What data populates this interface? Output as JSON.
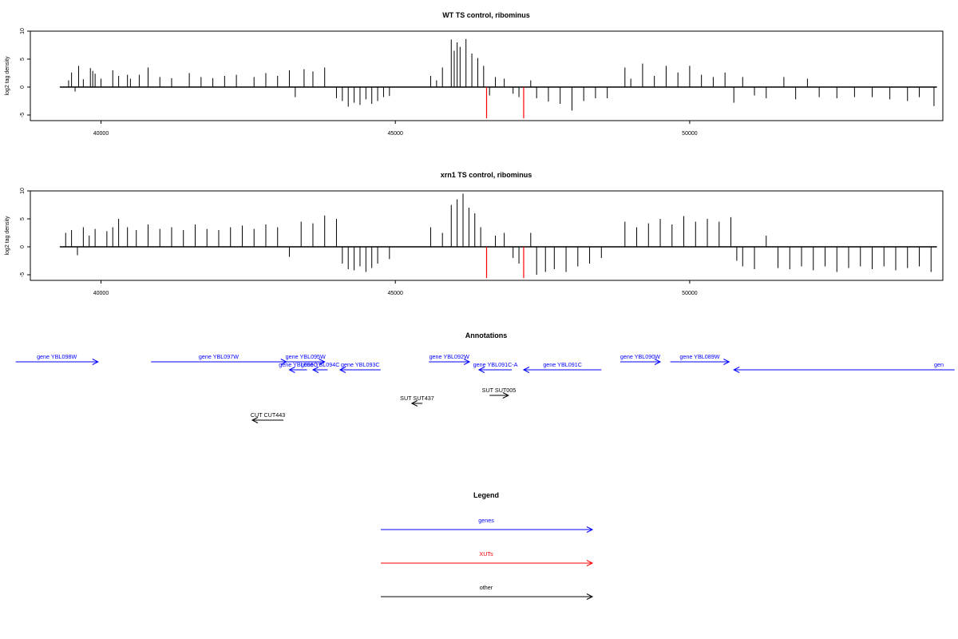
{
  "chart_data": [
    {
      "type": "bar",
      "title": "WT TS control, ribominus",
      "ylabel": "log2 tag density",
      "xlim": [
        38800,
        54300
      ],
      "ylim": [
        -6,
        10
      ],
      "xticks": [
        40000,
        45000,
        50000
      ],
      "yticks": [
        -5,
        0,
        5,
        10
      ],
      "grid": false,
      "series": [
        {
          "color": "#000000",
          "points": [
            [
              39450,
              1.2
            ],
            [
              39500,
              2.6
            ],
            [
              39560,
              -0.8
            ],
            [
              39620,
              3.8
            ],
            [
              39700,
              1.4
            ],
            [
              39820,
              3.4
            ],
            [
              39860,
              2.9
            ],
            [
              39900,
              2.4
            ],
            [
              40000,
              1.5
            ],
            [
              40200,
              3.0
            ],
            [
              40300,
              2.0
            ],
            [
              40450,
              2.2
            ],
            [
              40500,
              1.5
            ],
            [
              40650,
              2.2
            ],
            [
              40800,
              3.5
            ],
            [
              41000,
              1.8
            ],
            [
              41200,
              1.6
            ],
            [
              41500,
              2.5
            ],
            [
              41700,
              1.8
            ],
            [
              41900,
              1.6
            ],
            [
              42100,
              2.0
            ],
            [
              42300,
              2.2
            ],
            [
              42600,
              1.8
            ],
            [
              42800,
              2.5
            ],
            [
              43000,
              2.0
            ],
            [
              43200,
              3.0
            ],
            [
              43300,
              -1.8
            ],
            [
              43450,
              3.2
            ],
            [
              43600,
              2.8
            ],
            [
              43800,
              3.5
            ],
            [
              44000,
              -2.0
            ],
            [
              44100,
              -2.5
            ],
            [
              44200,
              -3.5
            ],
            [
              44300,
              -2.8
            ],
            [
              44400,
              -3.2
            ],
            [
              44500,
              -2.2
            ],
            [
              44600,
              -3.0
            ],
            [
              44700,
              -2.5
            ],
            [
              44800,
              -1.8
            ],
            [
              44900,
              -1.6
            ],
            [
              45600,
              2.0
            ],
            [
              45700,
              1.2
            ],
            [
              45800,
              3.5
            ],
            [
              45950,
              8.5
            ],
            [
              46000,
              6.5
            ],
            [
              46050,
              8.0
            ],
            [
              46100,
              7.2
            ],
            [
              46200,
              8.6
            ],
            [
              46300,
              6.0
            ],
            [
              46400,
              5.2
            ],
            [
              46500,
              3.8
            ],
            [
              46600,
              -1.5
            ],
            [
              46700,
              1.8
            ],
            [
              46850,
              1.5
            ],
            [
              47000,
              -1.2
            ],
            [
              47100,
              -1.8
            ],
            [
              47300,
              1.2
            ],
            [
              47400,
              -2.0
            ],
            [
              47600,
              -2.6
            ],
            [
              47800,
              -3.0
            ],
            [
              48000,
              -4.2
            ],
            [
              48200,
              -2.5
            ],
            [
              48400,
              -2.0
            ],
            [
              48600,
              -2.0
            ],
            [
              48900,
              3.5
            ],
            [
              49000,
              1.5
            ],
            [
              49200,
              4.2
            ],
            [
              49400,
              2.0
            ],
            [
              49600,
              3.8
            ],
            [
              49800,
              2.6
            ],
            [
              50000,
              3.8
            ],
            [
              50200,
              2.2
            ],
            [
              50400,
              1.8
            ],
            [
              50600,
              2.6
            ],
            [
              50750,
              -2.8
            ],
            [
              50900,
              1.8
            ],
            [
              51100,
              -1.5
            ],
            [
              51300,
              -2.0
            ],
            [
              51600,
              1.8
            ],
            [
              51800,
              -2.2
            ],
            [
              52000,
              1.5
            ],
            [
              52200,
              -1.8
            ],
            [
              52500,
              -2.0
            ],
            [
              52800,
              -1.8
            ],
            [
              53100,
              -1.8
            ],
            [
              53400,
              -2.2
            ],
            [
              53700,
              -2.5
            ],
            [
              53900,
              -1.8
            ],
            [
              54150,
              -3.4
            ]
          ]
        },
        {
          "color": "#ff0000",
          "points": [
            [
              46550,
              -5.6
            ],
            [
              47180,
              -5.6
            ]
          ]
        }
      ]
    },
    {
      "type": "bar",
      "title": "xrn1 TS control, ribominus",
      "ylabel": "log2 tag density",
      "xlim": [
        38800,
        54300
      ],
      "ylim": [
        -6,
        10
      ],
      "xticks": [
        40000,
        45000,
        50000
      ],
      "yticks": [
        -5,
        0,
        5,
        10
      ],
      "grid": false,
      "series": [
        {
          "color": "#000000",
          "points": [
            [
              39400,
              2.5
            ],
            [
              39500,
              3.0
            ],
            [
              39600,
              -1.5
            ],
            [
              39700,
              3.5
            ],
            [
              39800,
              2.0
            ],
            [
              39900,
              3.2
            ],
            [
              40100,
              2.8
            ],
            [
              40200,
              3.5
            ],
            [
              40300,
              5.0
            ],
            [
              40450,
              3.5
            ],
            [
              40600,
              3.0
            ],
            [
              40800,
              4.0
            ],
            [
              41000,
              3.2
            ],
            [
              41200,
              3.5
            ],
            [
              41400,
              3.0
            ],
            [
              41600,
              4.0
            ],
            [
              41800,
              3.2
            ],
            [
              42000,
              3.0
            ],
            [
              42200,
              3.5
            ],
            [
              42400,
              3.8
            ],
            [
              42600,
              3.2
            ],
            [
              42800,
              4.0
            ],
            [
              43000,
              3.5
            ],
            [
              43200,
              -1.8
            ],
            [
              43400,
              4.5
            ],
            [
              43600,
              4.2
            ],
            [
              43800,
              5.6
            ],
            [
              44000,
              5.0
            ],
            [
              44100,
              -3.0
            ],
            [
              44200,
              -4.0
            ],
            [
              44300,
              -4.2
            ],
            [
              44400,
              -3.5
            ],
            [
              44500,
              -4.5
            ],
            [
              44600,
              -3.8
            ],
            [
              44700,
              -3.0
            ],
            [
              44900,
              -2.2
            ],
            [
              45600,
              3.5
            ],
            [
              45800,
              2.5
            ],
            [
              45950,
              7.5
            ],
            [
              46050,
              8.5
            ],
            [
              46150,
              9.5
            ],
            [
              46250,
              7.0
            ],
            [
              46350,
              6.0
            ],
            [
              46450,
              3.5
            ],
            [
              46550,
              -2.5
            ],
            [
              46700,
              2.0
            ],
            [
              46850,
              2.5
            ],
            [
              47000,
              -2.0
            ],
            [
              47100,
              -3.0
            ],
            [
              47300,
              2.5
            ],
            [
              47400,
              -5.0
            ],
            [
              47550,
              -4.5
            ],
            [
              47700,
              -4.0
            ],
            [
              47900,
              -4.5
            ],
            [
              48100,
              -3.5
            ],
            [
              48300,
              -3.0
            ],
            [
              48500,
              -2.0
            ],
            [
              48900,
              4.5
            ],
            [
              49100,
              3.5
            ],
            [
              49300,
              4.2
            ],
            [
              49500,
              5.0
            ],
            [
              49700,
              4.0
            ],
            [
              49900,
              5.5
            ],
            [
              50100,
              4.5
            ],
            [
              50300,
              5.0
            ],
            [
              50500,
              4.5
            ],
            [
              50700,
              5.3
            ],
            [
              50800,
              -2.5
            ],
            [
              50900,
              -3.5
            ],
            [
              51100,
              -4.0
            ],
            [
              51300,
              2.0
            ],
            [
              51500,
              -3.8
            ],
            [
              51700,
              -4.0
            ],
            [
              51900,
              -3.5
            ],
            [
              52100,
              -4.2
            ],
            [
              52300,
              -3.5
            ],
            [
              52500,
              -4.5
            ],
            [
              52700,
              -3.8
            ],
            [
              52900,
              -3.5
            ],
            [
              53100,
              -4.0
            ],
            [
              53300,
              -3.5
            ],
            [
              53500,
              -4.2
            ],
            [
              53700,
              -3.8
            ],
            [
              53900,
              -3.5
            ],
            [
              54100,
              -4.5
            ]
          ]
        },
        {
          "color": "#ff0000",
          "points": [
            [
              46550,
              -5.6
            ],
            [
              47180,
              -5.6
            ]
          ]
        }
      ]
    }
  ],
  "annotations": {
    "title": "Annotations",
    "features": [
      {
        "label": "gene YBL098W",
        "x1": 38550,
        "x2": 39950,
        "dir": "right",
        "row": 0,
        "kind": "gene"
      },
      {
        "label": "gene YBL097W",
        "x1": 40850,
        "x2": 43150,
        "dir": "right",
        "row": 0,
        "kind": "gene"
      },
      {
        "label": "gene YBL095W",
        "x1": 43150,
        "x2": 43800,
        "dir": "right",
        "row": 0,
        "kind": "gene"
      },
      {
        "label": "gene YBL096C",
        "x1": 43200,
        "x2": 43500,
        "dir": "left",
        "row": 1,
        "kind": "gene"
      },
      {
        "label": "gene YBL094C",
        "x1": 43600,
        "x2": 43850,
        "dir": "left",
        "row": 1,
        "kind": "gene"
      },
      {
        "label": "gene YBL093C",
        "x1": 44060,
        "x2": 44750,
        "dir": "left",
        "row": 1,
        "kind": "gene"
      },
      {
        "label": "gene YBL092W",
        "x1": 45570,
        "x2": 46260,
        "dir": "right",
        "row": 0,
        "kind": "gene"
      },
      {
        "label": "gene YBL091C-A",
        "x1": 46420,
        "x2": 46980,
        "dir": "left",
        "row": 1,
        "kind": "gene"
      },
      {
        "label": "gene YBL091C",
        "x1": 47180,
        "x2": 48500,
        "dir": "left",
        "row": 1,
        "kind": "gene"
      },
      {
        "label": "gene YBL090W",
        "x1": 48820,
        "x2": 49500,
        "dir": "right",
        "row": 0,
        "kind": "gene"
      },
      {
        "label": "gene YBL089W",
        "x1": 49670,
        "x2": 50670,
        "dir": "right",
        "row": 0,
        "kind": "gene"
      },
      {
        "label": "gen",
        "x1": 50750,
        "x2": 54500,
        "dir": "left",
        "row": 1,
        "kind": "gene"
      },
      {
        "label": "SUT SUT437",
        "x1": 45280,
        "x2": 45460,
        "dir": "left",
        "row": 2,
        "kind": "other"
      },
      {
        "label": "SUT SUT005",
        "x1": 46600,
        "x2": 46920,
        "dir": "right",
        "row": 3,
        "kind": "other"
      },
      {
        "label": "CUT CUT443",
        "x1": 42570,
        "x2": 43100,
        "dir": "left",
        "row": 4,
        "kind": "other"
      }
    ]
  },
  "legend": {
    "title": "Legend",
    "entries": [
      {
        "label": "genes",
        "color": "#0000ff"
      },
      {
        "label": "XUTs",
        "color": "#ff0000"
      },
      {
        "label": "other",
        "color": "#000000"
      }
    ]
  }
}
